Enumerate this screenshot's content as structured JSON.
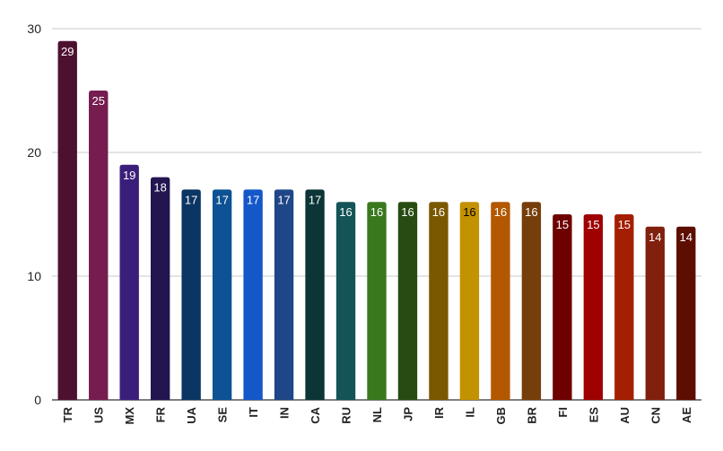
{
  "chart_data": {
    "type": "bar",
    "title": "",
    "xlabel": "",
    "ylabel": "",
    "ylim": [
      0,
      30
    ],
    "yticks": [
      0,
      10,
      20,
      30
    ],
    "grid": true,
    "legend": "none",
    "categories": [
      "TR",
      "US",
      "MX",
      "FR",
      "UA",
      "SE",
      "IT",
      "IN",
      "CA",
      "RU",
      "NL",
      "JP",
      "IR",
      "IL",
      "GB",
      "BR",
      "FI",
      "ES",
      "AU",
      "CN",
      "AE"
    ],
    "values": [
      29,
      25,
      19,
      18,
      17,
      17,
      17,
      17,
      17,
      16,
      16,
      16,
      16,
      16,
      16,
      16,
      15,
      15,
      15,
      14,
      14
    ],
    "colors": [
      "#4d1130",
      "#761c4f",
      "#3a1f7a",
      "#221550",
      "#0b3562",
      "#0d5294",
      "#1457c9",
      "#1f4686",
      "#0b3536",
      "#145357",
      "#3a781e",
      "#264c12",
      "#7a5800",
      "#c39200",
      "#b35800",
      "#763e0b",
      "#6e0000",
      "#9f0000",
      "#a41e00",
      "#82200e",
      "#5c0e00"
    ],
    "label_colors": [
      "#ffffff",
      "#ffffff",
      "#ffffff",
      "#ffffff",
      "#ffffff",
      "#ffffff",
      "#ffffff",
      "#ffffff",
      "#ffffff",
      "#ffffff",
      "#ffffff",
      "#ffffff",
      "#ffffff",
      "#000000",
      "#ffffff",
      "#ffffff",
      "#ffffff",
      "#ffffff",
      "#ffffff",
      "#ffffff",
      "#ffffff"
    ]
  }
}
